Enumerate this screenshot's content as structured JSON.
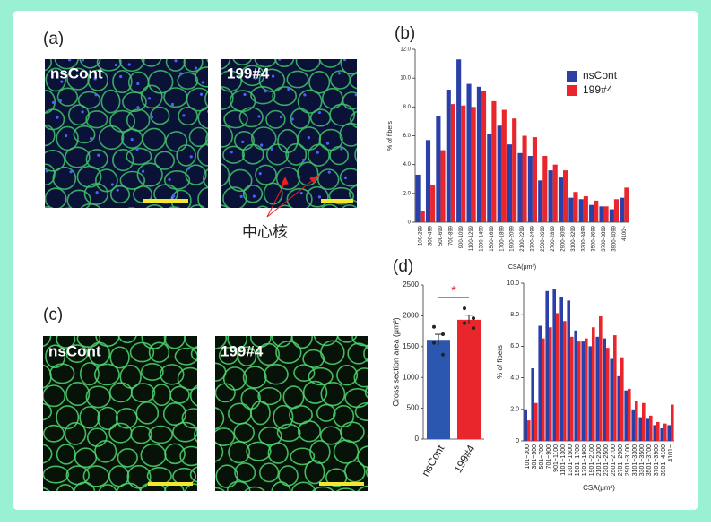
{
  "panel_labels": [
    "(a)",
    "(b)",
    "(c)",
    "(d)"
  ],
  "images": [
    {
      "label": "nsCont"
    },
    {
      "label": "199#4"
    },
    {
      "label": "nsCont"
    },
    {
      "label": "199#4"
    }
  ],
  "annotation": "中心核",
  "chart_data": [
    {
      "type": "histbar",
      "x_label": "CSA(μm²)",
      "y_label": "% of fibers",
      "legend": "upper right",
      "categories": [
        "100-299",
        "300-499",
        "500-699",
        "700-899",
        "900-1099",
        "1100-1299",
        "1300-1499",
        "1500-1699",
        "1700-1899",
        "1900-2099",
        "2100-2299",
        "2300-2499",
        "2500-2699",
        "2700-2899",
        "2900-3099",
        "3100-3299",
        "3300-3499",
        "3500-3699",
        "3700-3899",
        "3900-4099",
        "4100~"
      ],
      "series": [
        {
          "name": "nsCont",
          "color": "#2b3fa8",
          "values": [
            3.3,
            5.7,
            7.4,
            9.2,
            11.3,
            9.6,
            9.4,
            6.1,
            6.7,
            5.4,
            4.8,
            4.6,
            2.9,
            3.6,
            3.1,
            1.7,
            1.6,
            1.2,
            1.1,
            0.9,
            1.7
          ]
        },
        {
          "name": "199#4",
          "color": "#e8262b",
          "values": [
            0.8,
            2.6,
            5.0,
            8.2,
            8.1,
            8.0,
            9.1,
            8.4,
            7.8,
            7.2,
            6.0,
            5.9,
            4.6,
            4.0,
            3.6,
            2.1,
            1.8,
            1.5,
            1.1,
            1.6,
            2.4
          ]
        }
      ],
      "ylim": [
        0,
        12
      ],
      "yticks": [
        0,
        {
          "value": 2,
          "label": "2.0"
        },
        {
          "value": 4,
          "label": "4.0"
        },
        {
          "value": 6,
          "label": "6.0"
        },
        {
          "value": 8,
          "label": "8.0"
        },
        {
          "value": 10,
          "label": "10.0"
        },
        {
          "value": 12,
          "label": "12.0"
        }
      ]
    },
    {
      "type": "bar",
      "y_label": "Cross section area (μm²)",
      "significance": "*",
      "categories": [
        "nsCont",
        "199#4"
      ],
      "colors": [
        "#2b57b0",
        "#e8262b"
      ],
      "values": [
        1610,
        1935
      ],
      "errors": [
        90,
        75
      ],
      "points": [
        [
          1820,
          1700,
          1560,
          1370
        ],
        [
          2120,
          1960,
          1880,
          1800
        ]
      ],
      "ylim": [
        0,
        2500
      ],
      "yticks": [
        0,
        500,
        1000,
        1500,
        2000,
        2500
      ]
    },
    {
      "type": "histbar",
      "x_label": "CSA(μm²)",
      "y_label": "% of fibers",
      "categories": [
        "101~300",
        "301~500",
        "501~700",
        "701~900",
        "901~1100",
        "1101~1300",
        "1301~1500",
        "1501~1700",
        "1701~1900",
        "1901~2100",
        "2101~2300",
        "2301~2500",
        "2501~2700",
        "2701~2900",
        "2901~3100",
        "3101~3300",
        "3301~3500",
        "3501~3700",
        "3701~3900",
        "3901~4100",
        "4101~"
      ],
      "series": [
        {
          "name": "nsCont",
          "color": "#2b3fa8",
          "values": [
            2.0,
            4.6,
            7.3,
            9.5,
            9.6,
            9.1,
            8.9,
            7.0,
            6.3,
            6.0,
            6.6,
            6.5,
            5.2,
            4.1,
            3.2,
            2.0,
            1.5,
            1.4,
            1.0,
            0.8,
            1.0
          ]
        },
        {
          "name": "199#4",
          "color": "#e8262b",
          "values": [
            1.3,
            2.4,
            6.5,
            7.2,
            8.1,
            7.6,
            6.6,
            6.3,
            6.5,
            7.2,
            7.9,
            5.9,
            6.7,
            5.3,
            3.3,
            2.5,
            2.4,
            1.6,
            1.2,
            1.1,
            2.3
          ]
        }
      ],
      "ylim": [
        0,
        10
      ],
      "yticks": [
        0,
        {
          "value": 2,
          "label": "2.0"
        },
        {
          "value": 4,
          "label": "4.0"
        },
        {
          "value": 6,
          "label": "6.0"
        },
        {
          "value": 8,
          "label": "8.0"
        },
        {
          "value": 10,
          "label": "10.0"
        }
      ]
    }
  ]
}
